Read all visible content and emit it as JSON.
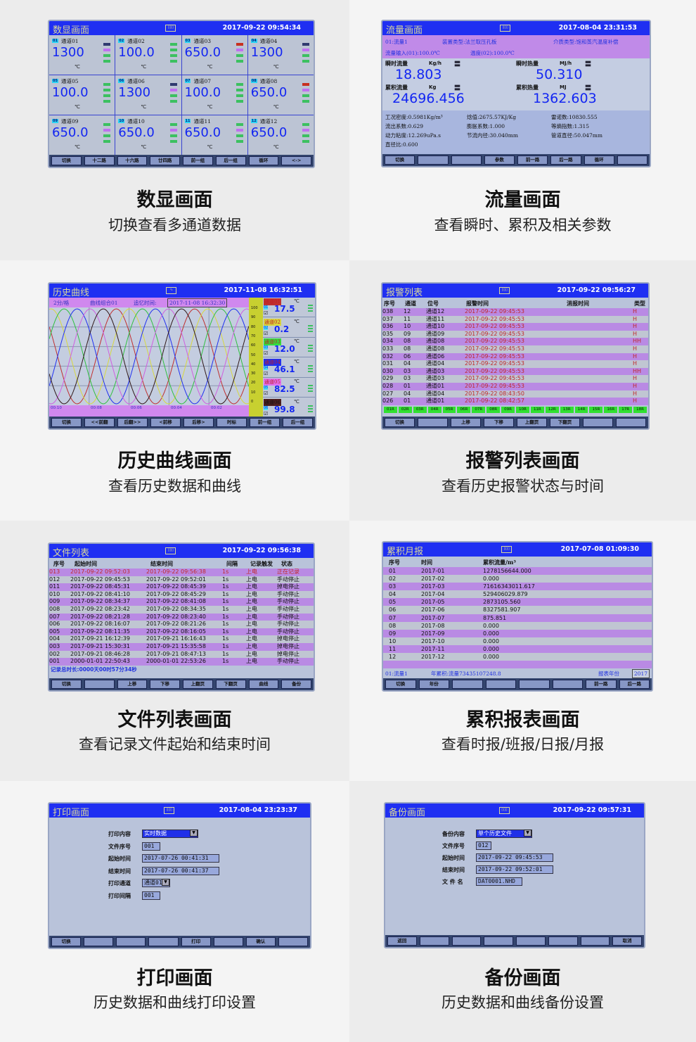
{
  "colors": {
    "titlebar": "#1f2ff2",
    "value_blue": "#1326f2",
    "purple_row": "#b98ae4",
    "gray_row": "#c0c6d2",
    "alarm_red": "#c0282a",
    "bar_green": "#3cc060",
    "bar_violet": "#c070f0",
    "bar_navy": "#303a70",
    "bar_red": "#c83020"
  },
  "panels": [
    {
      "id": "digital",
      "title": "数显画面",
      "datetime": "2017-09-22 09:54:34",
      "caption": "数显画面",
      "subcaption": "切换查看多通道数据",
      "channels": [
        {
          "no": "01",
          "label": "通道01",
          "value": "1300",
          "unit": "℃",
          "bars": [
            "navy",
            "violet",
            "green",
            "green"
          ]
        },
        {
          "no": "02",
          "label": "通道02",
          "value": "100.0",
          "unit": "℃",
          "bars": [
            "green",
            "green",
            "green",
            "green"
          ]
        },
        {
          "no": "03",
          "label": "通道03",
          "value": "650.0",
          "unit": "℃",
          "bars": [
            "red",
            "violet",
            "green",
            "green"
          ]
        },
        {
          "no": "04",
          "label": "通道04",
          "value": "1300",
          "unit": "℃",
          "bars": [
            "navy",
            "violet",
            "green",
            "green"
          ]
        },
        {
          "no": "05",
          "label": "通道05",
          "value": "100.0",
          "unit": "℃",
          "bars": [
            "green",
            "green",
            "green",
            "green"
          ]
        },
        {
          "no": "06",
          "label": "通道06",
          "value": "1300",
          "unit": "℃",
          "bars": [
            "navy",
            "violet",
            "green",
            "green"
          ]
        },
        {
          "no": "07",
          "label": "通道07",
          "value": "100.0",
          "unit": "℃",
          "bars": [
            "green",
            "green",
            "green",
            "green"
          ]
        },
        {
          "no": "08",
          "label": "通道08",
          "value": "650.0",
          "unit": "℃",
          "bars": [
            "red",
            "violet",
            "green",
            "green"
          ]
        },
        {
          "no": "09",
          "label": "通道09",
          "value": "650.0",
          "unit": "℃",
          "bars": [
            "green",
            "violet",
            "green",
            "green"
          ]
        },
        {
          "no": "10",
          "label": "通道10",
          "value": "650.0",
          "unit": "℃",
          "bars": [
            "green",
            "violet",
            "green",
            "green"
          ]
        },
        {
          "no": "11",
          "label": "通道11",
          "value": "650.0",
          "unit": "℃",
          "bars": [
            "green",
            "violet",
            "green",
            "green"
          ]
        },
        {
          "no": "12",
          "label": "通道12",
          "value": "650.0",
          "unit": "℃",
          "bars": [
            "green",
            "violet",
            "green",
            "green"
          ]
        }
      ],
      "buttons": [
        "切换",
        "十二路",
        "十六路",
        "廿四路",
        "前一组",
        "后一组",
        "循环",
        "<->"
      ]
    },
    {
      "id": "flow",
      "title": "流量画面",
      "datetime": "2017-08-04 23:31:53",
      "caption": "流量画面",
      "subcaption": "查看瞬时、累积及相关参数",
      "info": [
        "01:流量1",
        "装置类型:法兰取压孔板",
        "介质类型:饱和蒸汽温度补偿",
        "流量输入(01):100.0℃",
        "温度(02):100.0℃"
      ],
      "measures": [
        {
          "label": "瞬时流量",
          "unit": "Kg/h",
          "value": "18.803"
        },
        {
          "label": "瞬时热量",
          "unit": "MJ/h",
          "value": "50.310"
        },
        {
          "label": "累积流量",
          "unit": "Kg",
          "value": "24696.456"
        },
        {
          "label": "累积热量",
          "unit": "MJ",
          "value": "1362.603"
        }
      ],
      "params": [
        "工况密度:0.5981Kg/m³",
        "焓值:2675.57KJ/Kg",
        "雷诺数:10830.555",
        "流出系数:0.629",
        "膨胀系数:1.000",
        "等熵指数:1.315",
        "动力粘度:12.269uPa.s",
        "节流内径:30.040mm",
        "管道直径:50.047mm",
        "直径比:0.600"
      ],
      "buttons": [
        "切换",
        "",
        "",
        "参数",
        "前一路",
        "后一路",
        "循环",
        ""
      ]
    },
    {
      "id": "history",
      "title": "历史曲线",
      "datetime": "2017-11-08 16:32:51",
      "caption": "历史曲线画面",
      "subcaption": "查看历史数据和曲线",
      "scale_label": "2分/格",
      "group_label": "曲线组合01",
      "recall_label": "追忆时间:",
      "recall_time": "2017-11-08 16:32:30",
      "y_ticks": [
        "100",
        "90",
        "80",
        "70",
        "60",
        "50",
        "40",
        "30",
        "20",
        "10",
        "0"
      ],
      "x_ticks": [
        "00:10",
        "00:08",
        "00:06",
        "00:04",
        "00:02"
      ],
      "curve_colors": [
        "#c03030",
        "#d8d840",
        "#30c040",
        "#2030f0",
        "#d060e0",
        "#301818"
      ],
      "channels": [
        {
          "label": "通道01",
          "no": "01",
          "value": "17.5",
          "unit": "℃",
          "color": "#c03030"
        },
        {
          "label": "通道02",
          "no": "02",
          "value": "0.2",
          "unit": "℃",
          "color": "#d8d840"
        },
        {
          "label": "通道03",
          "no": "03",
          "value": "12.0",
          "unit": "℃",
          "color": "#30e040"
        },
        {
          "label": "通道04",
          "no": "04",
          "value": "46.1",
          "unit": "℃",
          "color": "#2030f0"
        },
        {
          "label": "通道05",
          "no": "05",
          "value": "82.5",
          "unit": "℃",
          "color": "#e070f0"
        },
        {
          "label": "通道06",
          "no": "06",
          "value": "99.8",
          "unit": "℃",
          "color": "#502020"
        }
      ],
      "buttons": [
        "切换",
        "<<前翻",
        "后翻>>",
        "<前移",
        "后移>",
        "时标",
        "前一组",
        "后一组"
      ]
    },
    {
      "id": "alarm",
      "title": "报警列表",
      "datetime": "2017-09-22 09:56:27",
      "caption": "报警列表画面",
      "subcaption": "查看历史报警状态与时间",
      "headers": [
        "序号",
        "通道",
        "位号",
        "报警时间",
        "消报时间",
        "类型"
      ],
      "rows": [
        [
          "038",
          "12",
          "通道12",
          "2017-09-22 09:45:53",
          "",
          "H"
        ],
        [
          "037",
          "11",
          "通道11",
          "2017-09-22 09:45:53",
          "",
          "H"
        ],
        [
          "036",
          "10",
          "通道10",
          "2017-09-22 09:45:53",
          "",
          "H"
        ],
        [
          "035",
          "09",
          "通道09",
          "2017-09-22 09:45:53",
          "",
          "H"
        ],
        [
          "034",
          "08",
          "通道08",
          "2017-09-22 09:45:53",
          "",
          "HH"
        ],
        [
          "033",
          "08",
          "通道08",
          "2017-09-22 09:45:53",
          "",
          "H"
        ],
        [
          "032",
          "06",
          "通道06",
          "2017-09-22 09:45:53",
          "",
          "H"
        ],
        [
          "031",
          "04",
          "通道04",
          "2017-09-22 09:45:53",
          "",
          "H"
        ],
        [
          "030",
          "03",
          "通道03",
          "2017-09-22 09:45:53",
          "",
          "HH"
        ],
        [
          "029",
          "03",
          "通道03",
          "2017-09-22 09:45:53",
          "",
          "H"
        ],
        [
          "028",
          "01",
          "通道01",
          "2017-09-22 09:45:53",
          "",
          "H"
        ],
        [
          "027",
          "04",
          "通道04",
          "2017-09-22 08:43:50",
          "",
          "H"
        ],
        [
          "026",
          "01",
          "通道01",
          "2017-09-22 08:42:57",
          "",
          "H"
        ]
      ],
      "relays": [
        "01R",
        "02R",
        "03R",
        "04R",
        "05R",
        "06R",
        "07R",
        "08R",
        "09R",
        "10R",
        "11R",
        "12R",
        "13R",
        "14R",
        "15R",
        "16R",
        "17R",
        "18R"
      ],
      "buttons": [
        "切换",
        "",
        "上移",
        "下移",
        "上翻页",
        "下翻页",
        "",
        ""
      ]
    },
    {
      "id": "files",
      "title": "文件列表",
      "datetime": "2017-09-22 09:56:38",
      "caption": "文件列表画面",
      "subcaption": "查看记录文件起始和结束时间",
      "headers": [
        "序号",
        "起始时间",
        "结束时间",
        "间隔",
        "记录触发",
        "状态"
      ],
      "rows": [
        [
          "013",
          "2017-09-22 09:52:03",
          "2017-09-22 09:56:38",
          "1s",
          "上电",
          "正在记录"
        ],
        [
          "012",
          "2017-09-22 09:45:53",
          "2017-09-22 09:52:01",
          "1s",
          "上电",
          "手动停止"
        ],
        [
          "011",
          "2017-09-22 08:45:31",
          "2017-09-22 08:45:39",
          "1s",
          "上电",
          "掉电停止"
        ],
        [
          "010",
          "2017-09-22 08:41:10",
          "2017-09-22 08:45:29",
          "1s",
          "上电",
          "手动停止"
        ],
        [
          "009",
          "2017-09-22 08:34:37",
          "2017-09-22 08:41:08",
          "1s",
          "上电",
          "手动停止"
        ],
        [
          "008",
          "2017-09-22 08:23:42",
          "2017-09-22 08:34:35",
          "1s",
          "上电",
          "手动停止"
        ],
        [
          "007",
          "2017-09-22 08:21:28",
          "2017-09-22 08:23:40",
          "1s",
          "上电",
          "手动停止"
        ],
        [
          "006",
          "2017-09-22 08:16:07",
          "2017-09-22 08:21:26",
          "1s",
          "上电",
          "手动停止"
        ],
        [
          "005",
          "2017-09-22 08:11:35",
          "2017-09-22 08:16:05",
          "1s",
          "上电",
          "手动停止"
        ],
        [
          "004",
          "2017-09-21 16:12:39",
          "2017-09-21 16:16:43",
          "1s",
          "上电",
          "掉电停止"
        ],
        [
          "003",
          "2017-09-21 15:30:31",
          "2017-09-21 15:35:58",
          "1s",
          "上电",
          "掉电停止"
        ],
        [
          "002",
          "2017-09-21 08:46:28",
          "2017-09-21 08:47:13",
          "1s",
          "上电",
          "掉电停止"
        ],
        [
          "001",
          "2000-01-01 22:50:43",
          "2000-01-01 22:53:26",
          "1s",
          "上电",
          "手动停止"
        ]
      ],
      "total": "记录总时长:0000天00时57分34秒",
      "buttons": [
        "切换",
        "",
        "上移",
        "下移",
        "上翻页",
        "下翻页",
        "曲线",
        "备份"
      ]
    },
    {
      "id": "monthly",
      "title": "累积月报",
      "datetime": "2017-07-08 01:09:30",
      "caption": "累积报表画面",
      "subcaption": "查看时报/班报/日报/月报",
      "headers": [
        "序号",
        "时间",
        "累积流量/m³"
      ],
      "rows": [
        [
          "01",
          "2017-01",
          "1278156644.000"
        ],
        [
          "02",
          "2017-02",
          "0.000"
        ],
        [
          "03",
          "2017-03",
          "71616343011.617"
        ],
        [
          "04",
          "2017-04",
          "529406029.879"
        ],
        [
          "05",
          "2017-05",
          "2873105.560"
        ],
        [
          "06",
          "2017-06",
          "8327581.907"
        ],
        [
          "07",
          "2017-07",
          "875.851"
        ],
        [
          "08",
          "2017-08",
          "0.000"
        ],
        [
          "09",
          "2017-09",
          "0.000"
        ],
        [
          "10",
          "2017-10",
          "0.000"
        ],
        [
          "11",
          "2017-11",
          "0.000"
        ],
        [
          "12",
          "2017-12",
          "0.000"
        ]
      ],
      "footer_channel": "01:流量1",
      "footer_total": "年累积:流量73435107248.8",
      "year_label": "报表年份",
      "year": "2017",
      "buttons": [
        "切换",
        "年份",
        "",
        "",
        "",
        "",
        "前一路",
        "后一路"
      ]
    },
    {
      "id": "print",
      "title": "打印画面",
      "datetime": "2017-08-04 23:23:37",
      "caption": "打印画面",
      "subcaption": "历史数据和曲线打印设置",
      "fields": [
        {
          "label": "打印内容",
          "value": "实时数据",
          "type": "select"
        },
        {
          "label": "文件序号",
          "value": "001"
        },
        {
          "label": "起始时间",
          "value": "2017-07-26 00:41:31"
        },
        {
          "label": "结束时间",
          "value": "2017-07-26 00:41:37"
        },
        {
          "label": "打印通道",
          "value": "通道01",
          "type": "select2"
        },
        {
          "label": "打印间隔",
          "value": "001"
        }
      ],
      "buttons": [
        "切换",
        "",
        "",
        "",
        "打印",
        "",
        "确认",
        ""
      ]
    },
    {
      "id": "backup",
      "title": "备份画面",
      "datetime": "2017-09-22 09:57:31",
      "caption": "备份画面",
      "subcaption": "历史数据和曲线备份设置",
      "fields": [
        {
          "label": "备份内容",
          "value": "单个历史文件",
          "type": "select"
        },
        {
          "label": "文件序号",
          "value": "012"
        },
        {
          "label": "起始时间",
          "value": "2017-09-22 09:45:53"
        },
        {
          "label": "结束时间",
          "value": "2017-09-22 09:52:01"
        },
        {
          "label": "文 件 名",
          "value": "DAT0001.NHD"
        }
      ],
      "buttons": [
        "返回",
        "",
        "",
        "",
        "",
        "",
        "",
        "取消"
      ]
    }
  ]
}
